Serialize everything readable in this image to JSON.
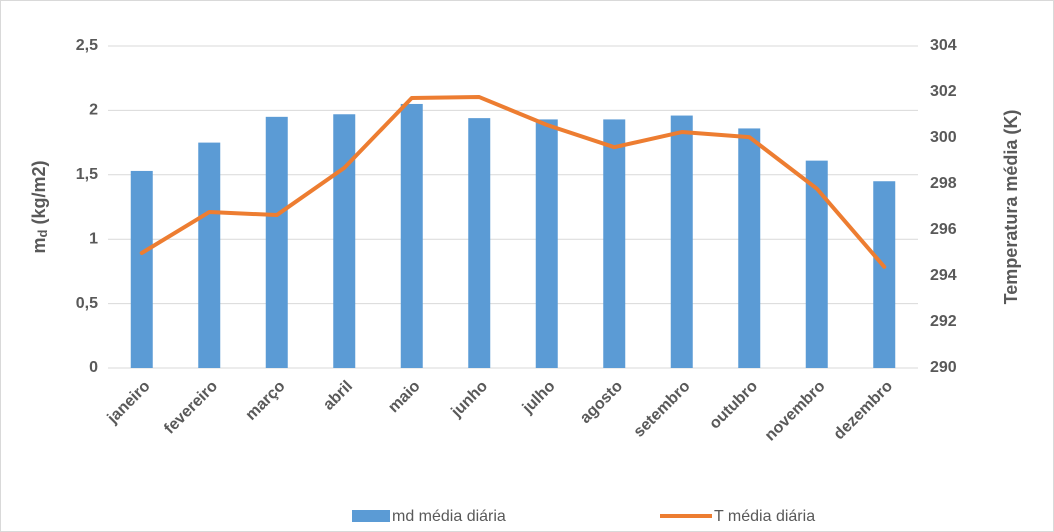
{
  "chart_data": {
    "type": "bar-line",
    "ylabel": [
      "m",
      "d",
      " (kg/m2)"
    ],
    "y2label": "Temperatura média (K)",
    "categories": [
      "janeiro",
      "fevereiro",
      "março",
      "abril",
      "maio",
      "junho",
      "julho",
      "agosto",
      "setembro",
      "outubro",
      "novembro",
      "dezembro"
    ],
    "series": [
      {
        "name": "md média diária",
        "type": "bar",
        "color": "#5b9bd5",
        "values": [
          1.53,
          1.75,
          1.95,
          1.97,
          2.05,
          1.94,
          1.93,
          1.93,
          1.96,
          1.86,
          1.61,
          1.45
        ]
      },
      {
        "name": "T média diária",
        "type": "line",
        "axis": "y2",
        "color": "#ed7d31",
        "values": [
          295.0,
          296.78,
          296.65,
          298.7,
          301.74,
          301.78,
          300.57,
          299.6,
          300.26,
          300.04,
          297.8,
          294.4
        ]
      }
    ],
    "ylim": [
      0,
      2.5
    ],
    "yticks": [
      0,
      {
        "value": 0.5,
        "label": "0,5"
      },
      1,
      {
        "value": 1.5,
        "label": "1,5"
      },
      2,
      {
        "value": 2.5,
        "label": "2,5"
      }
    ],
    "y2lim": [
      290,
      304
    ],
    "y2ticks": [
      290,
      292,
      294,
      296,
      298,
      300,
      302,
      304
    ],
    "grid": true,
    "legend": "bottom"
  }
}
